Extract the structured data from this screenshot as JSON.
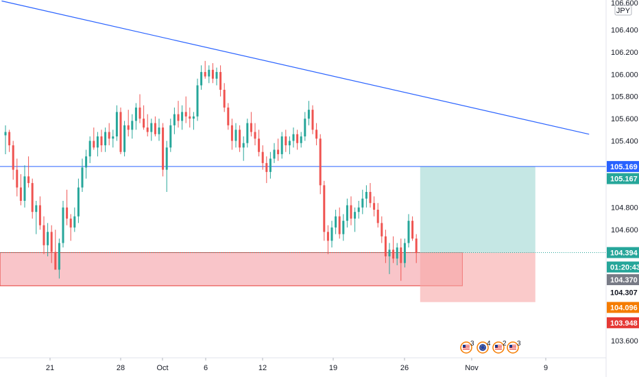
{
  "chart_data": {
    "type": "candlestick",
    "currency_label": "JPY",
    "ylim": [
      103.5,
      106.65
    ],
    "y_ticks": [
      103.6,
      104.6,
      104.8,
      105.4,
      105.6,
      105.8,
      106.0,
      106.2,
      106.4
    ],
    "y_tick_labels": [
      "103.600",
      "104.600",
      "104.800",
      "105.400",
      "105.600",
      "105.800",
      "106.000",
      "106.200",
      "106.400"
    ],
    "top_partial_label": "106.600",
    "x_ticks": [
      "21",
      "28",
      "Oct",
      "6",
      "12",
      "19",
      "26",
      "Nov",
      "9"
    ],
    "grid": false,
    "colors": {
      "up": "#26a69a",
      "down": "#ef5350",
      "trendline": "#2962ff",
      "hline": "#2962ff",
      "zone_fill": "#f8bbbf",
      "zone_border": "#e53935",
      "target_fill": "#b2dfdb",
      "stop_fill": "#f7a6a6"
    },
    "candles": [
      [
        105.45,
        105.54,
        105.28,
        105.48
      ],
      [
        105.48,
        105.5,
        105.3,
        105.36
      ],
      [
        105.36,
        105.4,
        105.05,
        105.14
      ],
      [
        105.14,
        105.24,
        104.9,
        104.98
      ],
      [
        104.98,
        105.1,
        104.82,
        104.86
      ],
      [
        104.86,
        105.18,
        104.8,
        105.08
      ],
      [
        105.08,
        105.26,
        104.98,
        105.02
      ],
      [
        105.02,
        105.06,
        104.7,
        104.76
      ],
      [
        104.76,
        104.86,
        104.56,
        104.82
      ],
      [
        104.82,
        104.9,
        104.6,
        104.64
      ],
      [
        104.64,
        104.72,
        104.38,
        104.46
      ],
      [
        104.46,
        104.66,
        104.36,
        104.58
      ],
      [
        104.58,
        104.64,
        104.3,
        104.4
      ],
      [
        104.4,
        104.6,
        104.26,
        104.24
      ],
      [
        104.24,
        104.52,
        104.16,
        104.48
      ],
      [
        104.48,
        104.86,
        104.44,
        104.8
      ],
      [
        104.8,
        104.96,
        104.64,
        104.7
      ],
      [
        104.7,
        104.74,
        104.5,
        104.62
      ],
      [
        104.62,
        104.8,
        104.58,
        104.72
      ],
      [
        104.72,
        105.06,
        104.66,
        104.98
      ],
      [
        104.98,
        105.24,
        104.94,
        105.16
      ],
      [
        105.16,
        105.32,
        105.06,
        105.26
      ],
      [
        105.26,
        105.44,
        105.2,
        105.4
      ],
      [
        105.4,
        105.52,
        105.32,
        105.34
      ],
      [
        105.34,
        105.48,
        105.26,
        105.44
      ],
      [
        105.44,
        105.5,
        105.3,
        105.36
      ],
      [
        105.36,
        105.52,
        105.3,
        105.48
      ],
      [
        105.48,
        105.56,
        105.36,
        105.42
      ],
      [
        105.42,
        105.5,
        105.34,
        105.44
      ],
      [
        105.44,
        105.72,
        105.4,
        105.66
      ],
      [
        105.66,
        105.7,
        105.28,
        105.3
      ],
      [
        105.3,
        105.58,
        105.26,
        105.54
      ],
      [
        105.54,
        105.68,
        105.44,
        105.5
      ],
      [
        105.5,
        105.64,
        105.42,
        105.58
      ],
      [
        105.58,
        105.74,
        105.5,
        105.7
      ],
      [
        105.7,
        105.82,
        105.56,
        105.6
      ],
      [
        105.6,
        105.72,
        105.5,
        105.52
      ],
      [
        105.52,
        105.64,
        105.44,
        105.48
      ],
      [
        105.48,
        105.6,
        105.4,
        105.56
      ],
      [
        105.56,
        105.62,
        105.44,
        105.46
      ],
      [
        105.46,
        105.6,
        105.4,
        105.52
      ],
      [
        105.52,
        105.56,
        105.08,
        105.14
      ],
      [
        105.14,
        105.4,
        104.94,
        105.34
      ],
      [
        105.34,
        105.6,
        105.3,
        105.54
      ],
      [
        105.54,
        105.7,
        105.46,
        105.64
      ],
      [
        105.64,
        105.76,
        105.52,
        105.58
      ],
      [
        105.58,
        105.72,
        105.5,
        105.66
      ],
      [
        105.66,
        105.8,
        105.56,
        105.62
      ],
      [
        105.62,
        105.7,
        105.52,
        105.6
      ],
      [
        105.6,
        105.66,
        105.5,
        105.62
      ],
      [
        105.62,
        105.96,
        105.58,
        105.9
      ],
      [
        105.9,
        106.08,
        105.86,
        106.02
      ],
      [
        106.02,
        106.12,
        105.96,
        105.98
      ],
      [
        105.98,
        106.08,
        105.92,
        106.04
      ],
      [
        106.04,
        106.1,
        105.92,
        105.96
      ],
      [
        105.96,
        106.06,
        105.9,
        106.02
      ],
      [
        106.02,
        106.08,
        105.8,
        105.86
      ],
      [
        105.86,
        105.92,
        105.66,
        105.7
      ],
      [
        105.7,
        105.74,
        105.5,
        105.54
      ],
      [
        105.54,
        105.6,
        105.32,
        105.4
      ],
      [
        105.4,
        105.56,
        105.34,
        105.5
      ],
      [
        105.5,
        105.54,
        105.3,
        105.34
      ],
      [
        105.34,
        105.44,
        105.22,
        105.38
      ],
      [
        105.38,
        105.6,
        105.34,
        105.56
      ],
      [
        105.56,
        105.66,
        105.44,
        105.48
      ],
      [
        105.48,
        105.56,
        105.36,
        105.42
      ],
      [
        105.42,
        105.5,
        105.26,
        105.3
      ],
      [
        105.3,
        105.36,
        105.14,
        105.2
      ],
      [
        105.2,
        105.26,
        105.02,
        105.12
      ],
      [
        105.12,
        105.3,
        105.06,
        105.24
      ],
      [
        105.24,
        105.38,
        105.2,
        105.32
      ],
      [
        105.32,
        105.42,
        105.22,
        105.28
      ],
      [
        105.28,
        105.48,
        105.24,
        105.44
      ],
      [
        105.44,
        105.5,
        105.3,
        105.36
      ],
      [
        105.36,
        105.44,
        105.28,
        105.4
      ],
      [
        105.4,
        105.52,
        105.34,
        105.46
      ],
      [
        105.46,
        105.5,
        105.32,
        105.38
      ],
      [
        105.38,
        105.48,
        105.34,
        105.44
      ],
      [
        105.44,
        105.66,
        105.4,
        105.6
      ],
      [
        105.6,
        105.76,
        105.54,
        105.68
      ],
      [
        105.68,
        105.72,
        105.46,
        105.5
      ],
      [
        105.5,
        105.56,
        105.36,
        105.42
      ],
      [
        105.42,
        105.46,
        104.92,
        105.0
      ],
      [
        105.0,
        105.04,
        104.5,
        104.58
      ],
      [
        104.58,
        104.64,
        104.38,
        104.5
      ],
      [
        104.5,
        104.68,
        104.44,
        104.62
      ],
      [
        104.62,
        104.78,
        104.56,
        104.72
      ],
      [
        104.72,
        104.8,
        104.52,
        104.56
      ],
      [
        104.56,
        104.74,
        104.5,
        104.68
      ],
      [
        104.68,
        104.88,
        104.62,
        104.82
      ],
      [
        104.82,
        104.9,
        104.64,
        104.7
      ],
      [
        104.7,
        104.8,
        104.58,
        104.76
      ],
      [
        104.76,
        104.86,
        104.7,
        104.8
      ],
      [
        104.8,
        104.96,
        104.74,
        104.88
      ],
      [
        104.88,
        105.0,
        104.8,
        104.94
      ],
      [
        104.94,
        105.02,
        104.8,
        104.84
      ],
      [
        104.84,
        104.9,
        104.72,
        104.78
      ],
      [
        104.78,
        104.84,
        104.62,
        104.66
      ],
      [
        104.66,
        104.72,
        104.48,
        104.54
      ],
      [
        104.54,
        104.6,
        104.3,
        104.36
      ],
      [
        104.36,
        104.48,
        104.2,
        104.42
      ],
      [
        104.42,
        104.54,
        104.3,
        104.34
      ],
      [
        104.34,
        104.48,
        104.28,
        104.44
      ],
      [
        104.44,
        104.52,
        104.14,
        104.3
      ],
      [
        104.3,
        104.52,
        104.26,
        104.48
      ],
      [
        104.48,
        104.74,
        104.44,
        104.68
      ],
      [
        104.68,
        104.72,
        104.5,
        104.52
      ],
      [
        104.52,
        104.56,
        104.3,
        104.39
      ]
    ],
    "trendline": {
      "from": [
        -1,
        106.66
      ],
      "to": [
        152,
        105.46
      ]
    },
    "horizontal_line": 105.169,
    "demand_zone": {
      "from_index": -1,
      "to_index": 119,
      "top": 104.394,
      "bottom": 104.095
    },
    "position": {
      "from_index": 108,
      "to_index": 138,
      "target": 105.169,
      "entry": 104.394,
      "stop": 103.948
    },
    "price_labels": [
      {
        "text": "105.169",
        "price": 105.169,
        "bg": "#2962ff",
        "fg": "#ffffff"
      },
      {
        "text": "105.167",
        "price": 105.06,
        "bg": "#26a69a",
        "fg": "#ffffff"
      },
      {
        "text": "104.394",
        "price": 104.394,
        "bg": "#26a69a",
        "fg": "#ffffff"
      },
      {
        "text": "01:20:43",
        "price": 104.264,
        "bg": "#26a69a",
        "fg": "#ffffff"
      },
      {
        "text": "104.370",
        "price": 104.15,
        "bg": "#787b86",
        "fg": "#ffffff"
      },
      {
        "text": "104.307",
        "price": 104.035,
        "bg": "#ffffff",
        "fg": "#131722"
      },
      {
        "text": "104.096",
        "price": 103.9,
        "bg": "#f57c00",
        "fg": "#ffffff"
      },
      {
        "text": "103.948",
        "price": 103.762,
        "bg": "#e53935",
        "fg": "#ffffff"
      }
    ],
    "events": [
      {
        "flag": "us",
        "count": "3"
      },
      {
        "flag": "eu",
        "count": "4"
      },
      {
        "flag": "us",
        "count": "2"
      },
      {
        "flag": "us",
        "count": "3"
      }
    ]
  }
}
